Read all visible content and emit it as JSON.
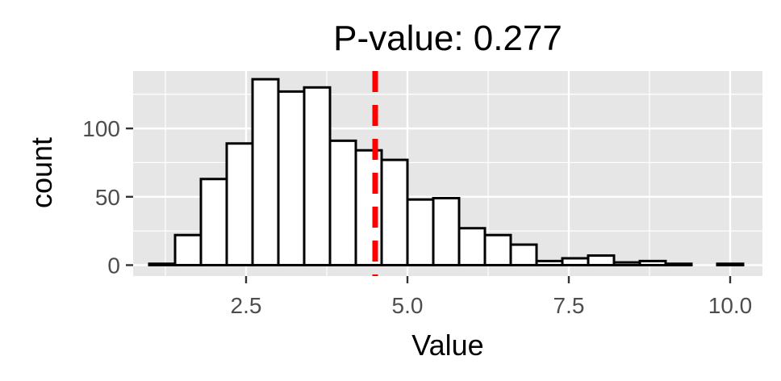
{
  "chart_data": {
    "type": "bar",
    "title": "P-value: 0.277",
    "xlabel": "Value",
    "ylabel": "count",
    "xlim": [
      0.75,
      10.5
    ],
    "ylim": [
      -8,
      142
    ],
    "x_ticks": [
      2.5,
      5.0,
      7.5,
      10.0
    ],
    "x_tick_labels": [
      "2.5",
      "5.0",
      "7.5",
      "10.0"
    ],
    "y_ticks": [
      0,
      50,
      100
    ],
    "y_tick_labels": [
      "0",
      "50",
      "100"
    ],
    "grid": true,
    "background": "#e6e6e6",
    "bar_fill": "#ffffff",
    "bar_stroke": "#000000",
    "bin_width": 0.4,
    "bins": [
      {
        "x0": 1.0,
        "x1": 1.4,
        "count": 1
      },
      {
        "x0": 1.4,
        "x1": 1.8,
        "count": 22
      },
      {
        "x0": 1.8,
        "x1": 2.2,
        "count": 63
      },
      {
        "x0": 2.2,
        "x1": 2.6,
        "count": 89
      },
      {
        "x0": 2.6,
        "x1": 3.0,
        "count": 136
      },
      {
        "x0": 3.0,
        "x1": 3.4,
        "count": 127
      },
      {
        "x0": 3.4,
        "x1": 3.8,
        "count": 130
      },
      {
        "x0": 3.8,
        "x1": 4.2,
        "count": 91
      },
      {
        "x0": 4.2,
        "x1": 4.6,
        "count": 84
      },
      {
        "x0": 4.6,
        "x1": 5.0,
        "count": 77
      },
      {
        "x0": 5.0,
        "x1": 5.4,
        "count": 48
      },
      {
        "x0": 5.4,
        "x1": 5.8,
        "count": 49
      },
      {
        "x0": 5.8,
        "x1": 6.2,
        "count": 27
      },
      {
        "x0": 6.2,
        "x1": 6.6,
        "count": 22
      },
      {
        "x0": 6.6,
        "x1": 7.0,
        "count": 15
      },
      {
        "x0": 7.0,
        "x1": 7.4,
        "count": 3
      },
      {
        "x0": 7.4,
        "x1": 7.8,
        "count": 5
      },
      {
        "x0": 7.8,
        "x1": 8.2,
        "count": 7
      },
      {
        "x0": 8.2,
        "x1": 8.6,
        "count": 2
      },
      {
        "x0": 8.6,
        "x1": 9.0,
        "count": 3
      },
      {
        "x0": 9.0,
        "x1": 9.4,
        "count": 1
      },
      {
        "x0": 9.4,
        "x1": 9.8,
        "count": 0
      },
      {
        "x0": 9.8,
        "x1": 10.2,
        "count": 1
      }
    ],
    "reference_line": {
      "value": 4.5,
      "color": "#ff0000",
      "style": "dashed"
    }
  }
}
